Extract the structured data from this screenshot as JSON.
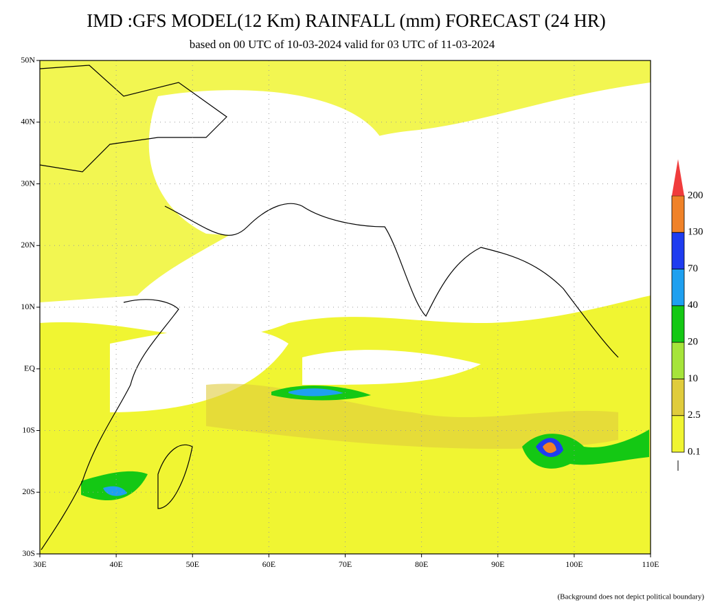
{
  "header": {
    "title": "IMD :GFS MODEL(12 Km) RAINFALL (mm) FORECAST (24 HR)",
    "subtitle": "based on 00 UTC of 10-03-2024 valid for 03 UTC of 11-03-2024"
  },
  "map": {
    "lat_labels": [
      "50N",
      "40N",
      "30N",
      "20N",
      "10N",
      "EQ",
      "10S",
      "20S",
      "30S"
    ],
    "lon_labels": [
      "30E",
      "40E",
      "50E",
      "60E",
      "70E",
      "80E",
      "90E",
      "100E",
      "110E"
    ]
  },
  "legend": {
    "levels": [
      0.1,
      2.5,
      10,
      20,
      40,
      70,
      130,
      200
    ],
    "colors": [
      "#f0f532",
      "#e0cc3c",
      "#a6e43a",
      "#14c814",
      "#1ea0f0",
      "#1e3cf0",
      "#f08228",
      "#f03c3c"
    ]
  },
  "footnote": "(Background does not depict political boundary)"
}
